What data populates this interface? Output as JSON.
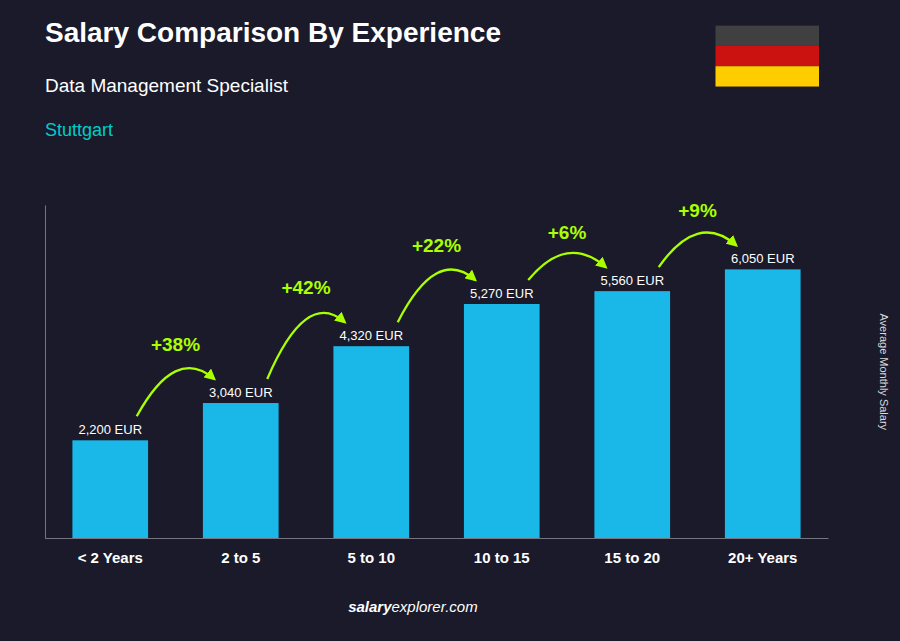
{
  "chart_data": {
    "type": "bar",
    "title": "Salary Comparison By Experience",
    "subtitle": "Data Management Specialist",
    "annotations": [
      "Stuttgart",
      "salary",
      "explorer.com"
    ],
    "ylabel": "Average Monthly Salary",
    "categories": [
      "< 2 Years",
      "2 to 5",
      "5 to 10",
      "10 to 15",
      "15 to 20",
      "20+ Years"
    ],
    "values": [
      2200,
      3040,
      4320,
      5270,
      5560,
      6050
    ],
    "value_labels": [
      "2,200 EUR",
      "3,040 EUR",
      "4,320 EUR",
      "5,270 EUR",
      "5,560 EUR",
      "6,050 EUR"
    ],
    "change_labels": [
      null,
      "+38%",
      "+42%",
      "+22%",
      "+6%",
      "+9%"
    ],
    "color": "#1ab8e8",
    "ylim": [
      0,
      7500
    ],
    "yticks": [],
    "grid": false,
    "data_labels": true,
    "tick_labels": "x"
  }
}
